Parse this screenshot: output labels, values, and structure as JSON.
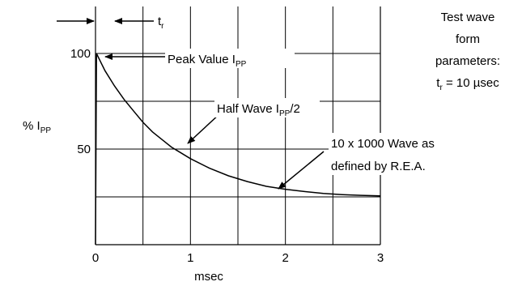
{
  "chart_data": {
    "type": "line",
    "xlabel": "msec",
    "ylabel_main": "% I",
    "ylabel_sub": "PP",
    "x_ticks": [
      "0",
      "1",
      "2",
      "3"
    ],
    "y_ticks": [
      "50",
      "100"
    ],
    "xlim": [
      0,
      3
    ],
    "ylim": [
      0,
      100
    ],
    "grid": true,
    "series": [
      {
        "x": [
          0,
          0.01,
          0.1,
          0.2,
          0.3,
          0.4,
          0.5,
          0.6,
          0.7,
          0.8,
          0.9,
          1.0,
          1.2,
          1.4,
          1.6,
          1.8,
          2.0,
          2.2,
          2.4,
          2.6,
          2.8,
          3.0
        ],
        "y": [
          0,
          100,
          91,
          83,
          76,
          70,
          64,
          59,
          55,
          51,
          48,
          45,
          40,
          36,
          33,
          30.5,
          29,
          27.8,
          26.8,
          26.2,
          25.8,
          25.5
        ]
      }
    ],
    "annotations": {
      "tr_label": "t",
      "tr_sub": "r",
      "peak_label": "Peak Value I",
      "peak_sub": "PP",
      "half_label_a": "Half Wave I",
      "half_sub": "PP",
      "half_label_b": "/2",
      "rea_line1": "10 x 1000 Wave as",
      "rea_line2": "defined by R.E.A."
    },
    "params": {
      "line1": "Test wave",
      "line2": "form",
      "line3": "parameters:",
      "line4_a": "t",
      "line4_sub": "r",
      "line4_b": " = 10 µsec"
    }
  }
}
